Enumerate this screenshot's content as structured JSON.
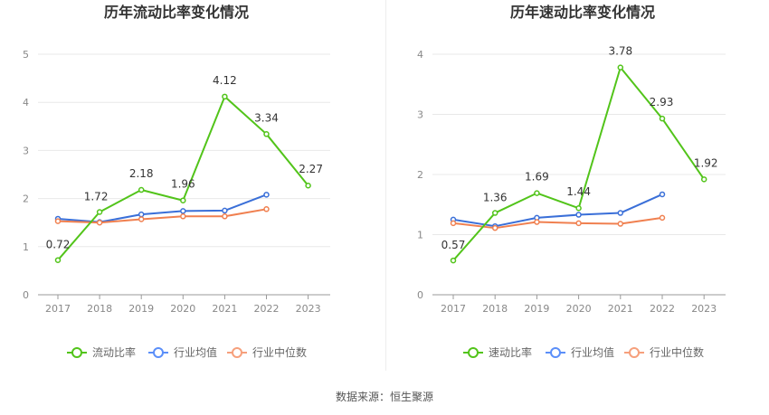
{
  "source_text": "数据来源：恒生聚源",
  "legend_item_colors": {
    "current": "#52c41a",
    "industry_avg": "#5b8ff9",
    "industry_median": "#f6a07c"
  },
  "chart_data": [
    {
      "type": "line",
      "title": "历年流动比率变化情况",
      "categories": [
        "2017",
        "2018",
        "2019",
        "2020",
        "2021",
        "2022",
        "2023"
      ],
      "ylim": [
        0,
        5
      ],
      "yticks": [
        "0",
        "1",
        "2",
        "3",
        "4",
        "5"
      ],
      "grid": true,
      "legend_position": "bottom",
      "series": [
        {
          "name": "流动比率",
          "color": "#52c41a",
          "values": [
            0.72,
            1.72,
            2.18,
            1.96,
            4.12,
            3.34,
            2.27
          ],
          "labels": [
            "0.72",
            "1.72",
            "2.18",
            "1.96",
            "4.12",
            "3.34",
            "2.27"
          ]
        },
        {
          "name": "行业均值",
          "color": "#3a6fd8",
          "values": [
            1.58,
            1.51,
            1.67,
            1.74,
            1.75,
            2.08,
            null
          ]
        },
        {
          "name": "行业中位数",
          "color": "#f08050",
          "values": [
            1.53,
            1.5,
            1.57,
            1.63,
            1.63,
            1.78,
            null
          ]
        }
      ]
    },
    {
      "type": "line",
      "title": "历年速动比率变化情况",
      "categories": [
        "2017",
        "2018",
        "2019",
        "2020",
        "2021",
        "2022",
        "2023"
      ],
      "ylim": [
        0,
        4
      ],
      "yticks": [
        "0",
        "1",
        "2",
        "3",
        "4"
      ],
      "grid": true,
      "legend_position": "bottom",
      "series": [
        {
          "name": "速动比率",
          "color": "#52c41a",
          "values": [
            0.57,
            1.36,
            1.69,
            1.44,
            3.78,
            2.93,
            1.92
          ],
          "labels": [
            "0.57",
            "1.36",
            "1.69",
            "1.44",
            "3.78",
            "2.93",
            "1.92"
          ]
        },
        {
          "name": "行业均值",
          "color": "#3a6fd8",
          "values": [
            1.25,
            1.14,
            1.28,
            1.33,
            1.36,
            1.67,
            null
          ]
        },
        {
          "name": "行业中位数",
          "color": "#f08050",
          "values": [
            1.19,
            1.11,
            1.21,
            1.19,
            1.18,
            1.28,
            null
          ]
        }
      ]
    }
  ]
}
